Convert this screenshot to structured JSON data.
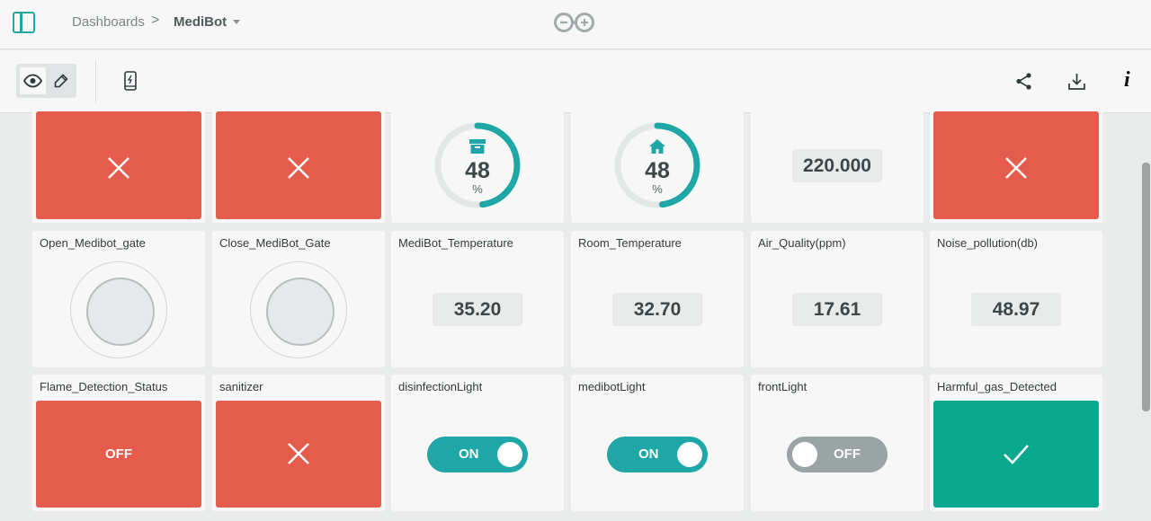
{
  "breadcrumb": {
    "root": "Dashboards",
    "separator": ">",
    "current": "MediBot"
  },
  "toolbar": {
    "icons": [
      "eye-icon",
      "edit-icon",
      "mobile-icon",
      "share-icon",
      "download-icon",
      "info-icon"
    ],
    "info_glyph": "i"
  },
  "colors": {
    "accent": "#1fa7a7",
    "red": "#e55c4c",
    "green": "#0aa98f",
    "off_grey": "#9aa4a4"
  },
  "row1": {
    "gauge1": {
      "value": "48",
      "unit": "%",
      "icon": "archive-icon",
      "level": 0.48
    },
    "gauge2": {
      "value": "48",
      "unit": "%",
      "icon": "home-icon",
      "level": 0.48
    },
    "value_tile": "220.000"
  },
  "row2": [
    {
      "label": "Open_Medibot_gate"
    },
    {
      "label": "Close_MediBot_Gate"
    },
    {
      "label": "MediBot_Temperature",
      "value": "35.20"
    },
    {
      "label": "Room_Temperature",
      "value": "32.70"
    },
    {
      "label": "Air_Quality(ppm)",
      "value": "17.61"
    },
    {
      "label": "Noise_pollution(db)",
      "value": "48.97"
    }
  ],
  "row3": [
    {
      "label": "Flame_Detection_Status",
      "state": "OFF"
    },
    {
      "label": "sanitizer"
    },
    {
      "label": "disinfectionLight",
      "state": "ON"
    },
    {
      "label": "medibotLight",
      "state": "ON"
    },
    {
      "label": "frontLight",
      "state": "OFF"
    },
    {
      "label": "Harmful_gas_Detected"
    }
  ]
}
